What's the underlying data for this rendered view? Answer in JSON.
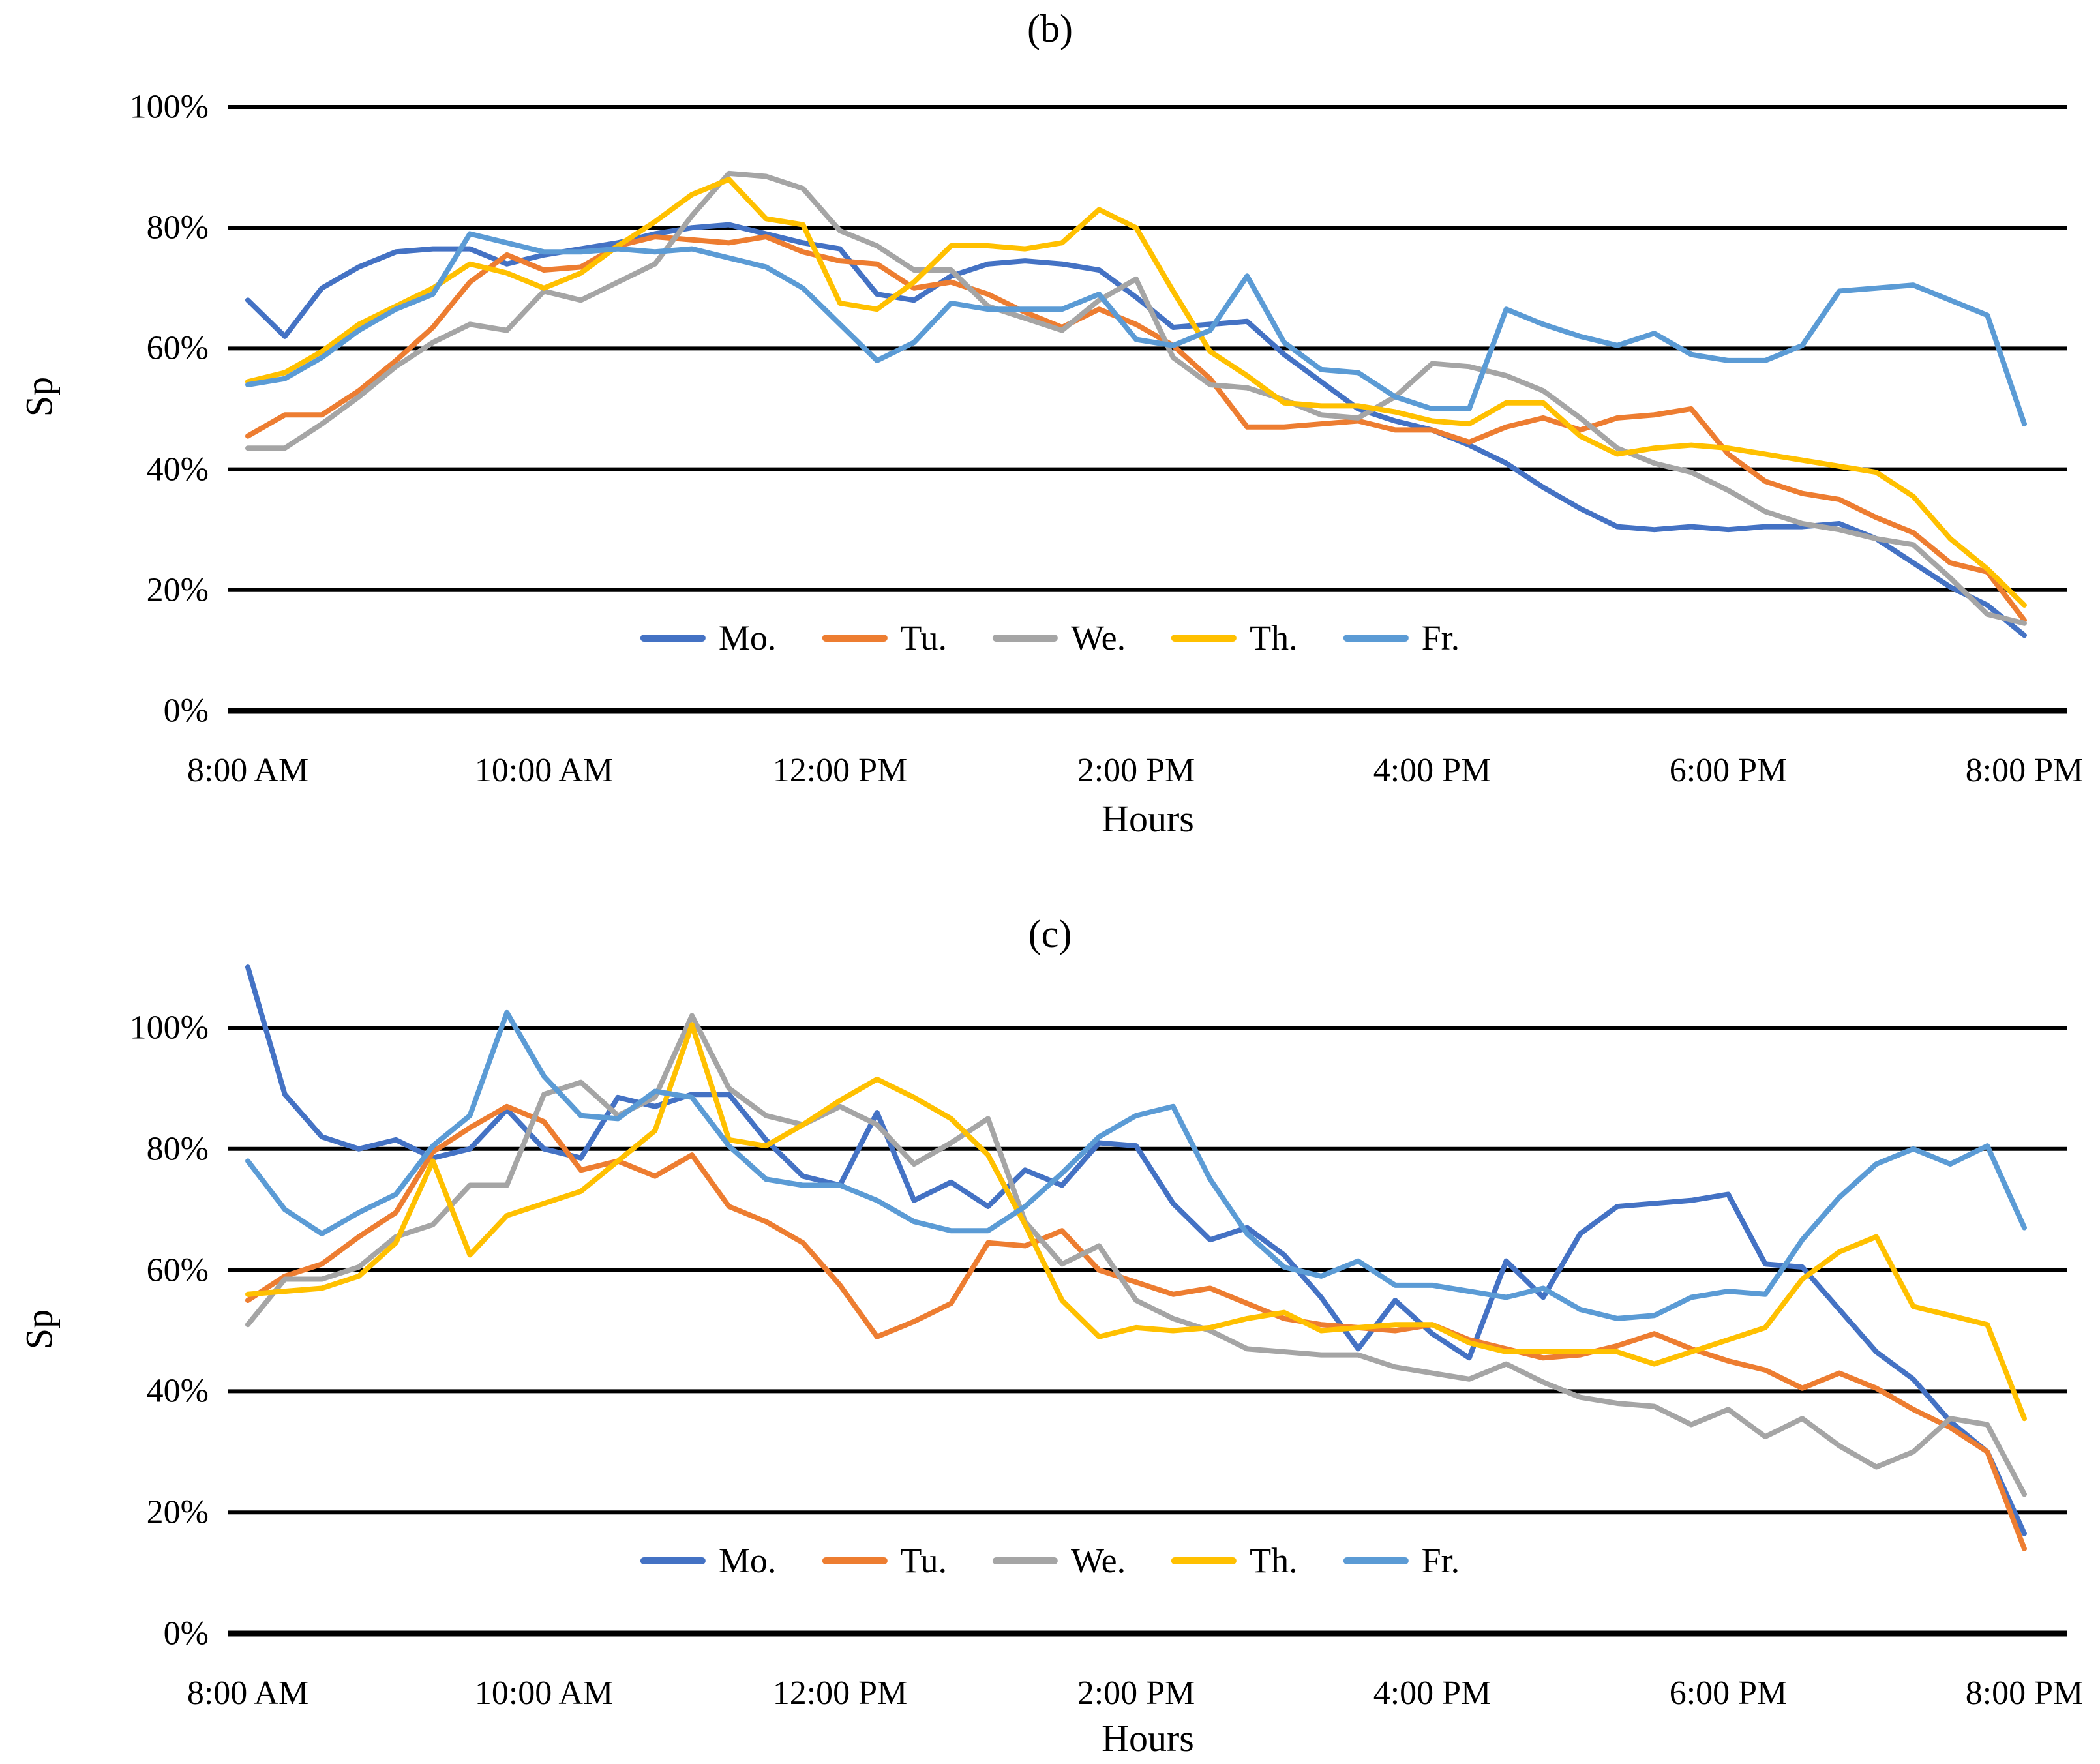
{
  "page": {
    "background": "#ffffff",
    "text_color": "#000000"
  },
  "axes": {
    "y_tick_labels": [
      "100%",
      "80%",
      "60%",
      "40%",
      "20%",
      "0%"
    ],
    "x_tick_labels": [
      "8:00 AM",
      "10:00 AM",
      "12:00 PM",
      "2:00 PM",
      "4:00 PM",
      "6:00 PM",
      "8:00 PM"
    ],
    "y_axis_title": "Sp",
    "x_axis_title": "Hours"
  },
  "chart_data": [
    {
      "type": "line",
      "title": "(b)",
      "ylabel": "Sp",
      "xlabel": "Hours",
      "ylim": [
        0,
        100
      ],
      "y_ticks": [
        0,
        20,
        40,
        60,
        80,
        100
      ],
      "grid": "horizontal",
      "legend_position": "inside-bottom",
      "x_interval_minutes": 15,
      "x": [
        "8:00 AM",
        "8:15 AM",
        "8:30 AM",
        "8:45 AM",
        "9:00 AM",
        "9:15 AM",
        "9:30 AM",
        "9:45 AM",
        "10:00 AM",
        "10:15 AM",
        "10:30 AM",
        "10:45 AM",
        "11:00 AM",
        "11:15 AM",
        "11:30 AM",
        "11:45 AM",
        "12:00 PM",
        "12:15 PM",
        "12:30 PM",
        "12:45 PM",
        "1:00 PM",
        "1:15 PM",
        "1:30 PM",
        "1:45 PM",
        "2:00 PM",
        "2:15 PM",
        "2:30 PM",
        "2:45 PM",
        "3:00 PM",
        "3:15 PM",
        "3:30 PM",
        "3:45 PM",
        "4:00 PM",
        "4:15 PM",
        "4:30 PM",
        "4:45 PM",
        "5:00 PM",
        "5:15 PM",
        "5:30 PM",
        "5:45 PM",
        "6:00 PM",
        "6:15 PM",
        "6:30 PM",
        "6:45 PM",
        "7:00 PM",
        "7:15 PM",
        "7:30 PM",
        "7:45 PM",
        "8:00 PM"
      ],
      "series": [
        {
          "name": "Mo.",
          "color": "#4472C4",
          "values": [
            68,
            62,
            70,
            73.5,
            76,
            76.5,
            76.5,
            74,
            75.5,
            76.5,
            77.5,
            79,
            80,
            80.5,
            79,
            77.5,
            76.5,
            69,
            68,
            72,
            74,
            74.5,
            74,
            73,
            68.5,
            63.5,
            64,
            64.5,
            59,
            54.5,
            50,
            48,
            46.5,
            44,
            41,
            37,
            33.5,
            30.5,
            30,
            30.5,
            30,
            30.5,
            30.5,
            31,
            28.5,
            24.5,
            20.5,
            17.5,
            12.5
          ]
        },
        {
          "name": "Tu.",
          "color": "#ED7D31",
          "values": [
            45.5,
            49,
            49,
            53,
            58,
            63.5,
            71,
            75.5,
            73,
            73.5,
            77,
            78.5,
            78,
            77.5,
            78.5,
            76,
            74.5,
            74,
            70,
            71,
            69,
            66,
            63.5,
            66.5,
            64,
            60.5,
            55,
            47,
            47,
            47.5,
            48,
            46.5,
            46.5,
            44.5,
            47,
            48.5,
            46.5,
            48.5,
            49,
            50,
            42.5,
            38,
            36,
            35,
            32,
            29.5,
            24.5,
            23,
            15
          ]
        },
        {
          "name": "We.",
          "color": "#A5A5A5",
          "values": [
            43.5,
            43.5,
            47.5,
            52,
            57,
            61,
            64,
            63,
            69.5,
            68,
            71,
            74,
            82,
            89,
            88.5,
            86.5,
            79.5,
            77,
            73,
            73,
            67,
            65,
            63,
            68,
            71.5,
            58.5,
            54,
            53.5,
            51.5,
            49,
            48.5,
            52,
            57.5,
            57,
            55.5,
            53,
            48.5,
            43.5,
            41,
            39.5,
            36.5,
            33,
            31,
            30,
            28.5,
            27.5,
            22,
            16,
            14.5
          ]
        },
        {
          "name": "Th.",
          "color": "#FFC000",
          "values": [
            54.5,
            56,
            59.5,
            64,
            67,
            70,
            74,
            72.5,
            70,
            72.5,
            77,
            81,
            85.5,
            88,
            81.5,
            80.5,
            67.5,
            66.5,
            71,
            77,
            77,
            76.5,
            77.5,
            83,
            80,
            69.5,
            59.5,
            55.5,
            51,
            50.5,
            50.5,
            49.5,
            48,
            47.5,
            51,
            51,
            45.5,
            42.5,
            43.5,
            44,
            43.5,
            42.5,
            41.5,
            40.5,
            39.5,
            35.5,
            28.5,
            23.5,
            17.5
          ]
        },
        {
          "name": "Fr.",
          "color": "#5B9BD5",
          "values": [
            54,
            55,
            58.5,
            63,
            66.5,
            69,
            79,
            77.5,
            76,
            76,
            76.5,
            76,
            76.5,
            75,
            73.5,
            70,
            64,
            58,
            61,
            67.5,
            66.5,
            66.5,
            66.5,
            69,
            61.5,
            60.5,
            63,
            72,
            61,
            56.5,
            56,
            52,
            50,
            50,
            66.5,
            64,
            62,
            60.5,
            62.5,
            59,
            58,
            58,
            60.5,
            69.5,
            70,
            70.5,
            68,
            65.5,
            47.5
          ]
        }
      ]
    },
    {
      "type": "line",
      "title": "(c)",
      "ylabel": "Sp",
      "xlabel": "Hours",
      "ylim": [
        0,
        115
      ],
      "y_ticks": [
        0,
        20,
        40,
        60,
        80,
        100
      ],
      "grid": "horizontal",
      "legend_position": "inside-bottom",
      "x_interval_minutes": 15,
      "x": [
        "8:00 AM",
        "8:15 AM",
        "8:30 AM",
        "8:45 AM",
        "9:00 AM",
        "9:15 AM",
        "9:30 AM",
        "9:45 AM",
        "10:00 AM",
        "10:15 AM",
        "10:30 AM",
        "10:45 AM",
        "11:00 AM",
        "11:15 AM",
        "11:30 AM",
        "11:45 AM",
        "12:00 PM",
        "12:15 PM",
        "12:30 PM",
        "12:45 PM",
        "1:00 PM",
        "1:15 PM",
        "1:30 PM",
        "1:45 PM",
        "2:00 PM",
        "2:15 PM",
        "2:30 PM",
        "2:45 PM",
        "3:00 PM",
        "3:15 PM",
        "3:30 PM",
        "3:45 PM",
        "4:00 PM",
        "4:15 PM",
        "4:30 PM",
        "4:45 PM",
        "5:00 PM",
        "5:15 PM",
        "5:30 PM",
        "5:45 PM",
        "6:00 PM",
        "6:15 PM",
        "6:30 PM",
        "6:45 PM",
        "7:00 PM",
        "7:15 PM",
        "7:30 PM",
        "7:45 PM",
        "8:00 PM"
      ],
      "series": [
        {
          "name": "Mo.",
          "color": "#4472C4",
          "values": [
            110,
            89,
            82,
            80,
            81.5,
            78.5,
            80,
            86.5,
            80,
            78.5,
            88.5,
            87,
            89,
            89,
            81.5,
            75.5,
            74,
            86,
            71.5,
            74.5,
            70.5,
            76.5,
            74,
            81,
            80.5,
            71,
            65,
            67,
            62.5,
            55.5,
            47,
            55,
            49.5,
            45.5,
            61.5,
            55.5,
            66,
            70.5,
            71,
            71.5,
            72.5,
            61,
            60.5,
            53.5,
            46.5,
            42,
            35,
            30,
            16.5
          ]
        },
        {
          "name": "Tu.",
          "color": "#ED7D31",
          "values": [
            55,
            59,
            61,
            65.5,
            69.5,
            79.5,
            83.5,
            87,
            84.5,
            76.5,
            78,
            75.5,
            79,
            70.5,
            68,
            64.5,
            57.5,
            49,
            51.5,
            54.5,
            64.5,
            64,
            66.5,
            60,
            58,
            56,
            57,
            54.5,
            52,
            51,
            50.5,
            50,
            51,
            48.5,
            47,
            45.5,
            46,
            47.5,
            49.5,
            47,
            45,
            43.5,
            40.5,
            43,
            40.5,
            37,
            34,
            30,
            14
          ]
        },
        {
          "name": "We.",
          "color": "#A5A5A5",
          "values": [
            51,
            58.5,
            58.5,
            60.5,
            65.5,
            67.5,
            74,
            74,
            89,
            91,
            85.5,
            88.5,
            102,
            90,
            85.5,
            84,
            87,
            84,
            77.5,
            81,
            85,
            68,
            61,
            64,
            55,
            52,
            50,
            47,
            46.5,
            46,
            46,
            44,
            43,
            42,
            44.5,
            41.5,
            39,
            38,
            37.5,
            34.5,
            37,
            32.5,
            35.5,
            31,
            27.5,
            30,
            35.5,
            34.5,
            23
          ]
        },
        {
          "name": "Th.",
          "color": "#FFC000",
          "values": [
            56,
            56.5,
            57,
            59,
            64.5,
            78,
            62.5,
            69,
            71,
            73,
            78,
            83,
            100.5,
            81.5,
            80.5,
            84,
            88,
            91.5,
            88.5,
            85,
            79,
            67.5,
            55,
            49,
            50.5,
            50,
            50.5,
            52,
            53,
            50,
            50.5,
            51,
            51,
            48,
            46.5,
            46.5,
            46.5,
            46.5,
            44.5,
            46.5,
            48.5,
            50.5,
            58.5,
            63,
            65.5,
            54,
            52.5,
            51,
            35.5
          ]
        },
        {
          "name": "Fr.",
          "color": "#5B9BD5",
          "values": [
            78,
            70,
            66,
            69.5,
            72.5,
            80.5,
            85.5,
            102.5,
            92,
            85.5,
            85,
            89.5,
            88.5,
            80.5,
            75,
            74,
            74,
            71.5,
            68,
            66.5,
            66.5,
            70.5,
            76,
            82,
            85.5,
            87,
            75,
            66,
            60.5,
            59,
            61.5,
            57.5,
            57.5,
            56.5,
            55.5,
            57,
            53.5,
            52,
            52.5,
            55.5,
            56.5,
            56,
            65,
            72,
            77.5,
            80,
            77.5,
            80.5,
            67
          ]
        }
      ]
    }
  ]
}
